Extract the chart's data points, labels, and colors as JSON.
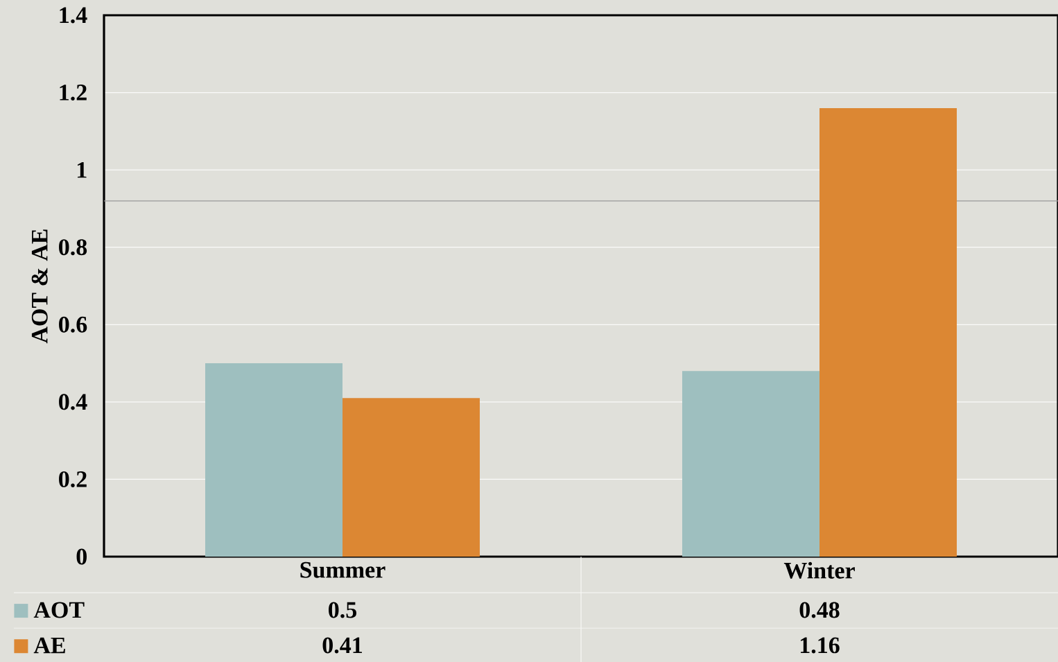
{
  "chart_data": {
    "type": "bar",
    "ylabel": "AOT & AE",
    "categories": [
      "Summer",
      "Winter"
    ],
    "series": [
      {
        "name": "AOT",
        "color": "#9ebfbf",
        "values": [
          0.5,
          0.48
        ]
      },
      {
        "name": "AE",
        "color": "#dc8733",
        "values": [
          0.41,
          1.16
        ]
      }
    ],
    "ylim": [
      0,
      1.4
    ],
    "yticks": [
      0,
      0.2,
      0.4,
      0.6,
      0.8,
      1,
      1.2,
      1.4
    ],
    "grid": "y",
    "legend": "bottom",
    "data_labels": true,
    "ref_lines": [
      {
        "axis": "y",
        "value": 0.92,
        "color": "#999999"
      }
    ]
  }
}
